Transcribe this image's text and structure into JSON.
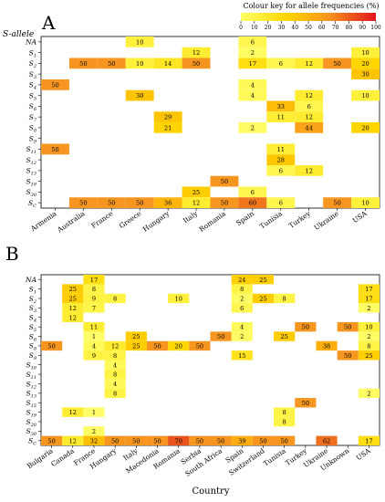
{
  "figure": {
    "colour_key": {
      "title": "Colour key for allele frequencies (%)",
      "ticks": [
        "0",
        "10",
        "20",
        "30",
        "40",
        "50",
        "60",
        "70",
        "80",
        "90",
        "100"
      ],
      "range": [
        0,
        100
      ]
    },
    "x_axis_title": "Country"
  },
  "chart_data": [
    {
      "type": "heatmap",
      "panel": "A",
      "y_title": "S-allele",
      "rows": [
        "NA",
        "S1",
        "S2",
        "S3",
        "S4",
        "S5",
        "S6",
        "S7",
        "S8",
        "S9",
        "S11",
        "S12",
        "S13",
        "S19",
        "S30",
        "SC"
      ],
      "row_labels": [
        {
          "base": "NA",
          "sub": ""
        },
        {
          "base": "S",
          "sub": "1"
        },
        {
          "base": "S",
          "sub": "2"
        },
        {
          "base": "S",
          "sub": "3"
        },
        {
          "base": "S",
          "sub": "4"
        },
        {
          "base": "S",
          "sub": "5"
        },
        {
          "base": "S",
          "sub": "6"
        },
        {
          "base": "S",
          "sub": "7"
        },
        {
          "base": "S",
          "sub": "8"
        },
        {
          "base": "S",
          "sub": "9"
        },
        {
          "base": "S",
          "sub": "11"
        },
        {
          "base": "S",
          "sub": "12"
        },
        {
          "base": "S",
          "sub": "13"
        },
        {
          "base": "S",
          "sub": "19"
        },
        {
          "base": "S",
          "sub": "30"
        },
        {
          "base": "S",
          "sub": "C"
        }
      ],
      "columns": [
        "Armenia",
        "Australia",
        "France",
        "Greece",
        "Hungary",
        "Italy",
        "Romania",
        "Spain",
        "Tunisia",
        "Turkey",
        "Ukraine",
        "USA"
      ],
      "values": [
        [
          null,
          null,
          null,
          10,
          null,
          null,
          null,
          6,
          null,
          null,
          null,
          null
        ],
        [
          null,
          null,
          null,
          null,
          null,
          12,
          null,
          2,
          null,
          null,
          null,
          10
        ],
        [
          null,
          50,
          50,
          10,
          14,
          50,
          null,
          17,
          6,
          12,
          50,
          20
        ],
        [
          null,
          null,
          null,
          null,
          null,
          null,
          null,
          null,
          null,
          null,
          null,
          30
        ],
        [
          50,
          null,
          null,
          null,
          null,
          null,
          null,
          4,
          null,
          null,
          null,
          null
        ],
        [
          null,
          null,
          null,
          30,
          null,
          null,
          null,
          4,
          null,
          12,
          null,
          10
        ],
        [
          null,
          null,
          null,
          null,
          null,
          null,
          null,
          null,
          33,
          6,
          null,
          null
        ],
        [
          null,
          null,
          null,
          null,
          29,
          null,
          null,
          null,
          11,
          12,
          null,
          null
        ],
        [
          null,
          null,
          null,
          null,
          21,
          null,
          null,
          2,
          null,
          44,
          null,
          20
        ],
        [
          null,
          null,
          null,
          null,
          null,
          null,
          null,
          null,
          null,
          null,
          null,
          null
        ],
        [
          50,
          null,
          null,
          null,
          null,
          null,
          null,
          null,
          11,
          null,
          null,
          null
        ],
        [
          null,
          null,
          null,
          null,
          null,
          null,
          null,
          null,
          28,
          null,
          null,
          null
        ],
        [
          null,
          null,
          null,
          null,
          null,
          null,
          null,
          null,
          6,
          12,
          null,
          null
        ],
        [
          null,
          null,
          null,
          null,
          null,
          null,
          50,
          null,
          null,
          null,
          null,
          null
        ],
        [
          null,
          null,
          null,
          null,
          null,
          25,
          null,
          6,
          null,
          null,
          null,
          null
        ],
        [
          null,
          50,
          50,
          50,
          36,
          12,
          50,
          60,
          6,
          null,
          50,
          10
        ]
      ]
    },
    {
      "type": "heatmap",
      "panel": "B",
      "rows": [
        "NA",
        "S1",
        "S2",
        "S3",
        "S4",
        "S5",
        "S6",
        "S8",
        "S9",
        "S10",
        "S11",
        "S12",
        "S13",
        "S15",
        "S19",
        "S20",
        "S30",
        "SC"
      ],
      "row_labels": [
        {
          "base": "NA",
          "sub": ""
        },
        {
          "base": "S",
          "sub": "1"
        },
        {
          "base": "S",
          "sub": "2"
        },
        {
          "base": "S",
          "sub": "3"
        },
        {
          "base": "S",
          "sub": "4"
        },
        {
          "base": "S",
          "sub": "5"
        },
        {
          "base": "S",
          "sub": "6"
        },
        {
          "base": "S",
          "sub": "8"
        },
        {
          "base": "S",
          "sub": "9"
        },
        {
          "base": "S",
          "sub": "10"
        },
        {
          "base": "S",
          "sub": "11"
        },
        {
          "base": "S",
          "sub": "12"
        },
        {
          "base": "S",
          "sub": "13"
        },
        {
          "base": "S",
          "sub": "15"
        },
        {
          "base": "S",
          "sub": "19"
        },
        {
          "base": "S",
          "sub": "20"
        },
        {
          "base": "S",
          "sub": "30"
        },
        {
          "base": "S",
          "sub": "C"
        }
      ],
      "columns": [
        "Bulgaria",
        "Canada",
        "France",
        "Hungary",
        "Italy",
        "Macedonia",
        "Romania",
        "Serbia",
        "South Africa",
        "Spain",
        "Switzerland",
        "Tunisia",
        "Turkey",
        "Ukraine",
        "Unknown",
        "USA"
      ],
      "values": [
        [
          null,
          null,
          17,
          null,
          null,
          null,
          null,
          null,
          null,
          24,
          25,
          null,
          null,
          null,
          null,
          null
        ],
        [
          null,
          25,
          8,
          null,
          null,
          null,
          null,
          null,
          null,
          8,
          null,
          null,
          null,
          null,
          null,
          17
        ],
        [
          null,
          25,
          9,
          8,
          null,
          null,
          10,
          null,
          null,
          2,
          25,
          8,
          null,
          null,
          null,
          17
        ],
        [
          null,
          12,
          7,
          null,
          null,
          null,
          null,
          null,
          null,
          6,
          null,
          null,
          null,
          null,
          null,
          2
        ],
        [
          null,
          12,
          null,
          null,
          null,
          null,
          null,
          null,
          null,
          null,
          null,
          null,
          null,
          null,
          null,
          null
        ],
        [
          null,
          null,
          11,
          null,
          null,
          null,
          null,
          null,
          null,
          4,
          null,
          null,
          50,
          null,
          50,
          10
        ],
        [
          null,
          null,
          1,
          null,
          25,
          null,
          null,
          null,
          50,
          2,
          null,
          25,
          null,
          null,
          null,
          2
        ],
        [
          50,
          null,
          4,
          12,
          25,
          50,
          20,
          50,
          null,
          null,
          null,
          null,
          null,
          38,
          null,
          8
        ],
        [
          null,
          null,
          9,
          8,
          null,
          null,
          null,
          null,
          null,
          15,
          null,
          null,
          null,
          null,
          50,
          25
        ],
        [
          null,
          null,
          null,
          4,
          null,
          null,
          null,
          null,
          null,
          null,
          null,
          null,
          null,
          null,
          null,
          null
        ],
        [
          null,
          null,
          null,
          8,
          null,
          null,
          null,
          null,
          null,
          null,
          null,
          null,
          null,
          null,
          null,
          null
        ],
        [
          null,
          null,
          null,
          4,
          null,
          null,
          null,
          null,
          null,
          null,
          null,
          null,
          null,
          null,
          null,
          null
        ],
        [
          null,
          null,
          null,
          8,
          null,
          null,
          null,
          null,
          null,
          null,
          null,
          null,
          null,
          null,
          null,
          2
        ],
        [
          null,
          null,
          null,
          null,
          null,
          null,
          null,
          null,
          null,
          null,
          null,
          null,
          50,
          null,
          null,
          null
        ],
        [
          null,
          12,
          1,
          null,
          null,
          null,
          null,
          null,
          null,
          null,
          null,
          8,
          null,
          null,
          null,
          null
        ],
        [
          null,
          null,
          null,
          null,
          null,
          null,
          null,
          null,
          null,
          null,
          null,
          8,
          null,
          null,
          null,
          null
        ],
        [
          null,
          null,
          2,
          null,
          null,
          null,
          null,
          null,
          null,
          null,
          null,
          null,
          null,
          null,
          null,
          null
        ],
        [
          50,
          12,
          32,
          50,
          50,
          50,
          70,
          50,
          50,
          39,
          50,
          50,
          null,
          62,
          null,
          17
        ]
      ]
    }
  ]
}
